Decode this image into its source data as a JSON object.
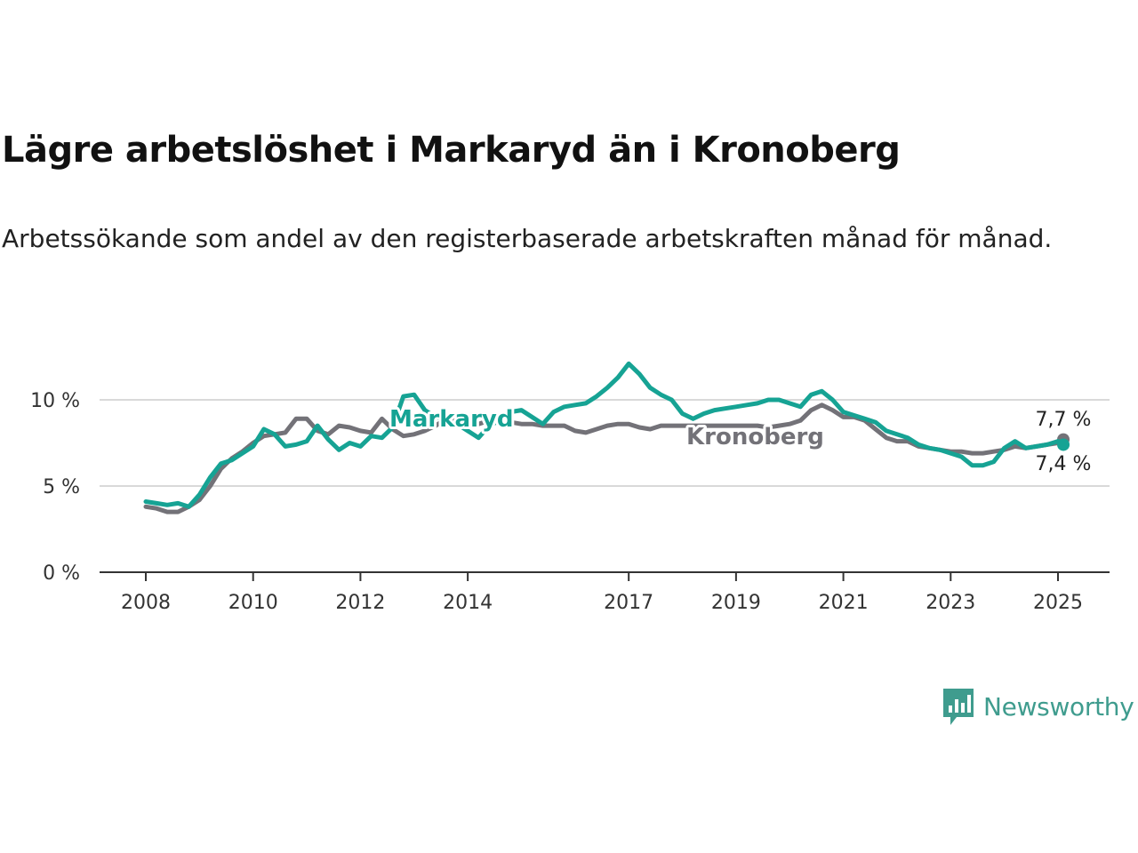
{
  "header": {
    "title": "Lägre arbetslöshet i Markaryd än i Kronoberg",
    "subtitle": "Arbetssökande som andel av den registerbaserade arbetskraften månad för månad."
  },
  "brand": {
    "name": "Newsworthy",
    "icon": "newsworthy-logo-icon",
    "color": "#3f9c8e"
  },
  "chart_data": {
    "type": "line",
    "title": "Lägre arbetslöshet i Markaryd än i Kronoberg",
    "subtitle": "Arbetssökande som andel av den registerbaserade arbetskraften månad för månad.",
    "xlabel": "",
    "ylabel": "",
    "xlim": [
      2008.0,
      2025.25
    ],
    "ylim": [
      0,
      12
    ],
    "x_ticks": [
      "2008",
      "2010",
      "2012",
      "2014",
      "2017",
      "2019",
      "2021",
      "2023",
      "2025"
    ],
    "y_ticks": [
      "0 %",
      "5 %",
      "10 %"
    ],
    "grid": "horizontal",
    "legend": "inline labels",
    "series": [
      {
        "name": "Kronoberg",
        "color": "#737278",
        "end_label": "7,7 %",
        "points": [
          [
            2008.0,
            3.8
          ],
          [
            2008.2,
            3.7
          ],
          [
            2008.4,
            3.5
          ],
          [
            2008.6,
            3.5
          ],
          [
            2008.8,
            3.8
          ],
          [
            2009.0,
            4.2
          ],
          [
            2009.2,
            5.0
          ],
          [
            2009.4,
            6.0
          ],
          [
            2009.6,
            6.6
          ],
          [
            2009.8,
            7.0
          ],
          [
            2010.0,
            7.5
          ],
          [
            2010.2,
            7.9
          ],
          [
            2010.4,
            8.0
          ],
          [
            2010.6,
            8.1
          ],
          [
            2010.8,
            8.9
          ],
          [
            2011.0,
            8.9
          ],
          [
            2011.2,
            8.2
          ],
          [
            2011.4,
            8.0
          ],
          [
            2011.6,
            8.5
          ],
          [
            2011.8,
            8.4
          ],
          [
            2012.0,
            8.2
          ],
          [
            2012.2,
            8.1
          ],
          [
            2012.4,
            8.9
          ],
          [
            2012.6,
            8.3
          ],
          [
            2012.8,
            7.9
          ],
          [
            2013.0,
            8.0
          ],
          [
            2013.2,
            8.2
          ],
          [
            2013.4,
            8.5
          ],
          [
            2013.6,
            8.9
          ],
          [
            2013.8,
            8.8
          ],
          [
            2014.0,
            8.6
          ],
          [
            2014.2,
            8.6
          ],
          [
            2014.4,
            8.8
          ],
          [
            2014.6,
            8.9
          ],
          [
            2014.8,
            8.7
          ],
          [
            2015.0,
            8.6
          ],
          [
            2015.2,
            8.6
          ],
          [
            2015.4,
            8.5
          ],
          [
            2015.6,
            8.5
          ],
          [
            2015.8,
            8.5
          ],
          [
            2016.0,
            8.2
          ],
          [
            2016.2,
            8.1
          ],
          [
            2016.4,
            8.3
          ],
          [
            2016.6,
            8.5
          ],
          [
            2016.8,
            8.6
          ],
          [
            2017.0,
            8.6
          ],
          [
            2017.2,
            8.4
          ],
          [
            2017.4,
            8.3
          ],
          [
            2017.6,
            8.5
          ],
          [
            2017.8,
            8.5
          ],
          [
            2018.0,
            8.5
          ],
          [
            2018.2,
            8.5
          ],
          [
            2018.4,
            8.5
          ],
          [
            2018.6,
            8.5
          ],
          [
            2018.8,
            8.5
          ],
          [
            2019.0,
            8.5
          ],
          [
            2019.2,
            8.5
          ],
          [
            2019.4,
            8.5
          ],
          [
            2019.6,
            8.4
          ],
          [
            2019.8,
            8.5
          ],
          [
            2020.0,
            8.6
          ],
          [
            2020.2,
            8.8
          ],
          [
            2020.4,
            9.4
          ],
          [
            2020.6,
            9.7
          ],
          [
            2020.8,
            9.4
          ],
          [
            2021.0,
            9.0
          ],
          [
            2021.2,
            9.0
          ],
          [
            2021.4,
            8.8
          ],
          [
            2021.6,
            8.3
          ],
          [
            2021.8,
            7.8
          ],
          [
            2022.0,
            7.6
          ],
          [
            2022.2,
            7.6
          ],
          [
            2022.4,
            7.3
          ],
          [
            2022.6,
            7.2
          ],
          [
            2022.8,
            7.1
          ],
          [
            2023.0,
            7.0
          ],
          [
            2023.2,
            7.0
          ],
          [
            2023.4,
            6.9
          ],
          [
            2023.6,
            6.9
          ],
          [
            2023.8,
            7.0
          ],
          [
            2024.0,
            7.1
          ],
          [
            2024.2,
            7.3
          ],
          [
            2024.4,
            7.2
          ],
          [
            2024.6,
            7.3
          ],
          [
            2024.8,
            7.4
          ],
          [
            2025.0,
            7.5
          ],
          [
            2025.1,
            7.7
          ]
        ]
      },
      {
        "name": "Markaryd",
        "color": "#16a394",
        "end_label": "7,4 %",
        "points": [
          [
            2008.0,
            4.1
          ],
          [
            2008.2,
            4.0
          ],
          [
            2008.4,
            3.9
          ],
          [
            2008.6,
            4.0
          ],
          [
            2008.8,
            3.8
          ],
          [
            2009.0,
            4.5
          ],
          [
            2009.2,
            5.5
          ],
          [
            2009.4,
            6.3
          ],
          [
            2009.6,
            6.5
          ],
          [
            2009.8,
            6.9
          ],
          [
            2010.0,
            7.3
          ],
          [
            2010.2,
            8.3
          ],
          [
            2010.4,
            8.0
          ],
          [
            2010.6,
            7.3
          ],
          [
            2010.8,
            7.4
          ],
          [
            2011.0,
            7.6
          ],
          [
            2011.2,
            8.5
          ],
          [
            2011.4,
            7.7
          ],
          [
            2011.6,
            7.1
          ],
          [
            2011.8,
            7.5
          ],
          [
            2012.0,
            7.3
          ],
          [
            2012.2,
            7.9
          ],
          [
            2012.4,
            7.8
          ],
          [
            2012.6,
            8.4
          ],
          [
            2012.8,
            10.2
          ],
          [
            2013.0,
            10.3
          ],
          [
            2013.2,
            9.4
          ],
          [
            2013.4,
            9.0
          ],
          [
            2013.6,
            8.8
          ],
          [
            2013.8,
            8.6
          ],
          [
            2014.0,
            8.2
          ],
          [
            2014.2,
            7.8
          ],
          [
            2014.4,
            8.5
          ],
          [
            2014.6,
            8.8
          ],
          [
            2014.8,
            9.3
          ],
          [
            2015.0,
            9.4
          ],
          [
            2015.2,
            9.0
          ],
          [
            2015.4,
            8.6
          ],
          [
            2015.6,
            9.3
          ],
          [
            2015.8,
            9.6
          ],
          [
            2016.0,
            9.7
          ],
          [
            2016.2,
            9.8
          ],
          [
            2016.4,
            10.2
          ],
          [
            2016.6,
            10.7
          ],
          [
            2016.8,
            11.3
          ],
          [
            2017.0,
            12.1
          ],
          [
            2017.2,
            11.5
          ],
          [
            2017.4,
            10.7
          ],
          [
            2017.6,
            10.3
          ],
          [
            2017.8,
            10.0
          ],
          [
            2018.0,
            9.2
          ],
          [
            2018.2,
            8.9
          ],
          [
            2018.4,
            9.2
          ],
          [
            2018.6,
            9.4
          ],
          [
            2018.8,
            9.5
          ],
          [
            2019.0,
            9.6
          ],
          [
            2019.2,
            9.7
          ],
          [
            2019.4,
            9.8
          ],
          [
            2019.6,
            10.0
          ],
          [
            2019.8,
            10.0
          ],
          [
            2020.0,
            9.8
          ],
          [
            2020.2,
            9.6
          ],
          [
            2020.4,
            10.3
          ],
          [
            2020.6,
            10.5
          ],
          [
            2020.8,
            10.0
          ],
          [
            2021.0,
            9.3
          ],
          [
            2021.2,
            9.1
          ],
          [
            2021.4,
            8.9
          ],
          [
            2021.6,
            8.7
          ],
          [
            2021.8,
            8.2
          ],
          [
            2022.0,
            8.0
          ],
          [
            2022.2,
            7.8
          ],
          [
            2022.4,
            7.4
          ],
          [
            2022.6,
            7.2
          ],
          [
            2022.8,
            7.1
          ],
          [
            2023.0,
            6.9
          ],
          [
            2023.2,
            6.7
          ],
          [
            2023.4,
            6.2
          ],
          [
            2023.6,
            6.2
          ],
          [
            2023.8,
            6.4
          ],
          [
            2024.0,
            7.2
          ],
          [
            2024.2,
            7.6
          ],
          [
            2024.4,
            7.2
          ],
          [
            2024.6,
            7.3
          ],
          [
            2024.8,
            7.4
          ],
          [
            2025.0,
            7.6
          ],
          [
            2025.1,
            7.4
          ]
        ]
      }
    ]
  }
}
